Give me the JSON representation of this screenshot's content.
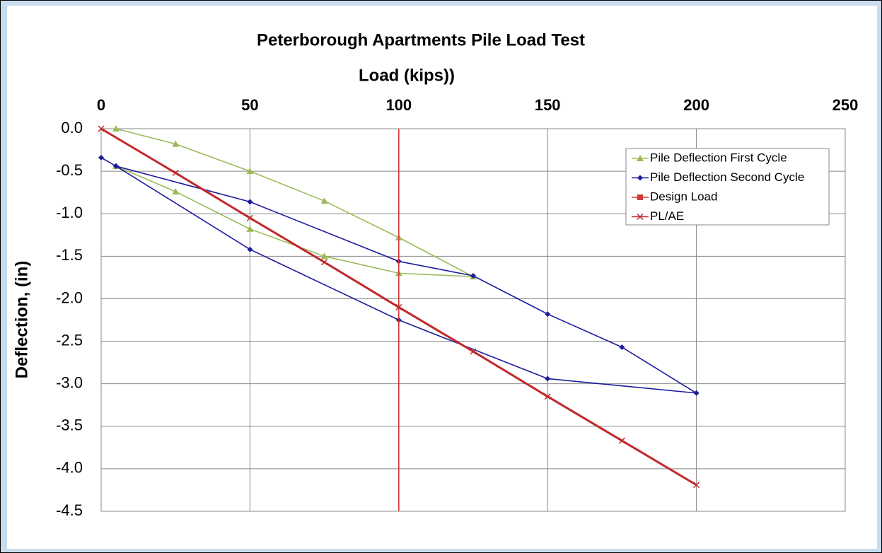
{
  "chart_data": {
    "type": "line",
    "title": "Peterborough Apartments Pile Load Test",
    "x_label": "Load (kips))",
    "y_label": "Deflection, (in)",
    "xlim": [
      0,
      250
    ],
    "xticks": [
      0,
      50,
      100,
      150,
      200,
      250
    ],
    "ylim": [
      -4.5,
      0
    ],
    "yticks": [
      {
        "value": 0,
        "label": "0.0"
      },
      -0.5,
      {
        "value": -1,
        "label": "-1.0"
      },
      -1.5,
      {
        "value": -2,
        "label": "-2.0"
      },
      -2.5,
      {
        "value": -3,
        "label": "-3.0"
      },
      -3.5,
      {
        "value": -4,
        "label": "-4.0"
      },
      -4.5
    ],
    "grid": true,
    "legend": "upper right",
    "series": [
      {
        "name": "Pile Deflection First Cycle",
        "color": "#9bbb59",
        "marker": "triangle",
        "x": [
          5,
          25,
          50,
          75,
          100,
          125,
          100,
          75,
          50,
          25,
          5
        ],
        "values": [
          0,
          -0.18,
          -0.5,
          -0.85,
          -1.28,
          -1.74,
          -1.7,
          -1.5,
          -1.18,
          -0.74,
          -0.44
        ]
      },
      {
        "name": "Pile Deflection Second Cycle",
        "color": "#1c1c9c",
        "marker": "diamond",
        "x": [
          0,
          5,
          50,
          100,
          125,
          150,
          175,
          200,
          150,
          100,
          50,
          5
        ],
        "values": [
          -0.34,
          -0.44,
          -0.86,
          -1.56,
          -1.73,
          -2.18,
          -2.57,
          -3.11,
          -2.94,
          -2.25,
          -1.42,
          -0.44
        ]
      },
      {
        "name": "Design Load",
        "color": "#d03838",
        "marker": "square",
        "markers": false,
        "x": [
          100,
          100
        ],
        "values": [
          0,
          -4.5
        ]
      },
      {
        "name": "PL/AE",
        "color": "#c0282a",
        "marker": "x",
        "x": [
          0,
          25,
          50,
          75,
          100,
          125,
          150,
          175,
          200
        ],
        "values": [
          0,
          -0.52,
          -1.05,
          -1.57,
          -2.1,
          -2.62,
          -3.15,
          -3.67,
          -4.19
        ]
      }
    ]
  }
}
